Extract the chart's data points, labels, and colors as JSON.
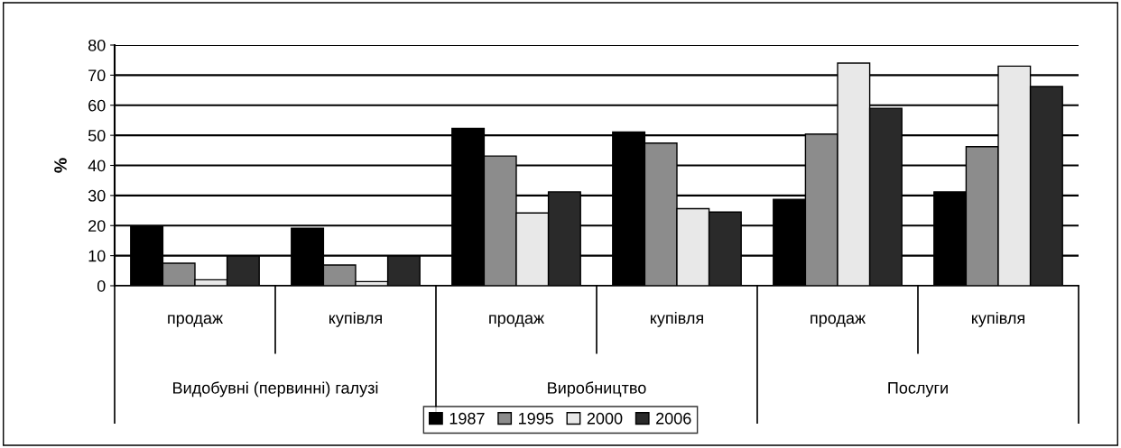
{
  "chart_data": {
    "type": "bar",
    "ylabel": "%",
    "categories": [
      "продаж",
      "купівля",
      "продаж",
      "купівля",
      "продаж",
      "купівля"
    ],
    "annotations": [
      "Видобувні (первинні) галузі",
      "Виробництво",
      "Послуги"
    ],
    "series": [
      {
        "name": "1987",
        "color": "#000000",
        "values": [
          19.8,
          19.1,
          52.3,
          51.1,
          28.7,
          31.2
        ]
      },
      {
        "name": "1995",
        "color": "#8c8c8c",
        "values": [
          7.5,
          6.9,
          43.1,
          47.4,
          50.4,
          46.2
        ]
      },
      {
        "name": "2000",
        "color": "#e8e8e8",
        "values": [
          2.0,
          1.4,
          24.2,
          25.6,
          74.0,
          73.0
        ]
      },
      {
        "name": "2006",
        "color": "#2a2a2a",
        "values": [
          9.9,
          9.9,
          31.2,
          24.5,
          59.0,
          66.2
        ]
      }
    ],
    "ylim": [
      0,
      80
    ],
    "yticks": [
      0,
      10,
      20,
      30,
      40,
      50,
      60,
      70,
      80
    ],
    "grid": "y",
    "legend": "bottom"
  }
}
